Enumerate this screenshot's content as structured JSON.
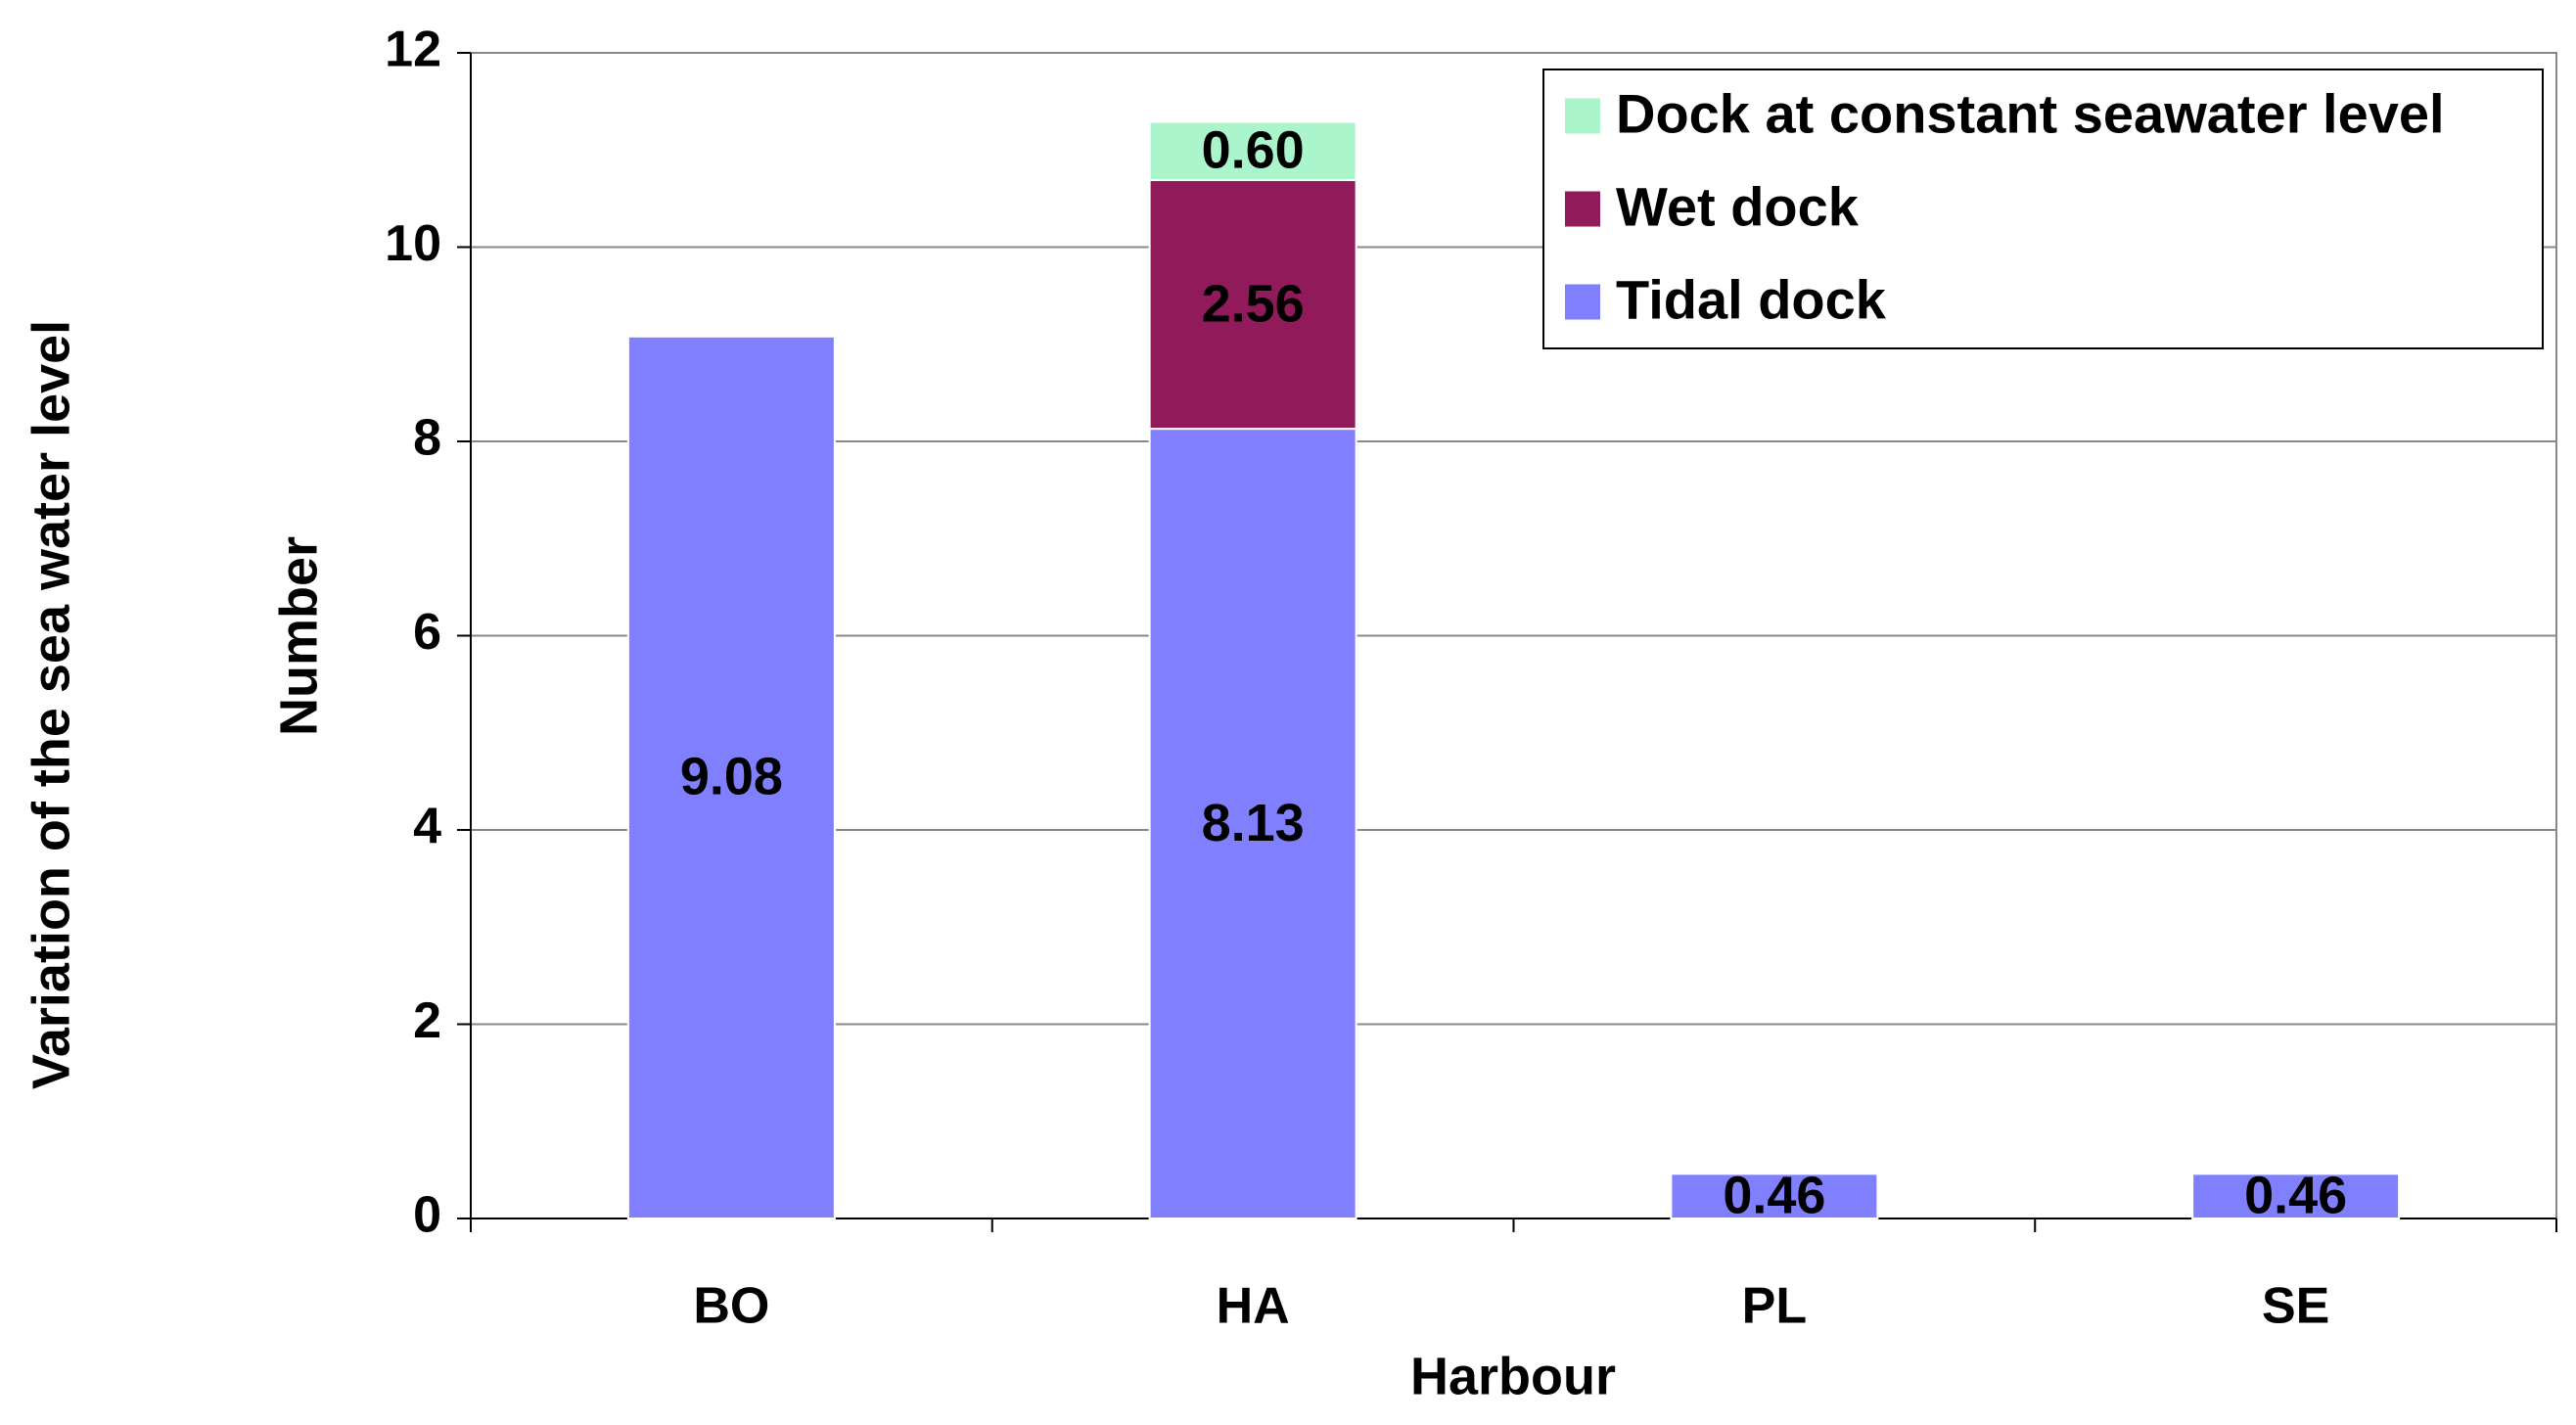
{
  "chart_data": {
    "type": "stacked-bar",
    "side_label": "Variation of the sea water level",
    "ylabel": "Number",
    "xlabel": "Harbour",
    "categories": [
      "BO",
      "HA",
      "PL",
      "SE"
    ],
    "series": [
      {
        "name": "Tidal dock",
        "color": "#8080ff",
        "values": [
          9.08,
          8.13,
          0.46,
          0.46
        ],
        "value_labels": [
          "9.08",
          "8.13",
          "0.46",
          "0.46"
        ]
      },
      {
        "name": "Wet dock",
        "color": "#901a5a",
        "values": [
          null,
          2.56,
          null,
          null
        ],
        "value_labels": [
          null,
          "2.56",
          null,
          null
        ]
      },
      {
        "name": "Dock at constant seawater level",
        "color": "#aaf5cc",
        "values": [
          null,
          0.6,
          null,
          null
        ],
        "value_labels": [
          null,
          "0.60",
          null,
          null
        ]
      }
    ],
    "ylim": [
      0,
      12
    ],
    "yticks": [
      0,
      2,
      4,
      6,
      8,
      10,
      12
    ],
    "grid": true,
    "legend": "top-right"
  }
}
